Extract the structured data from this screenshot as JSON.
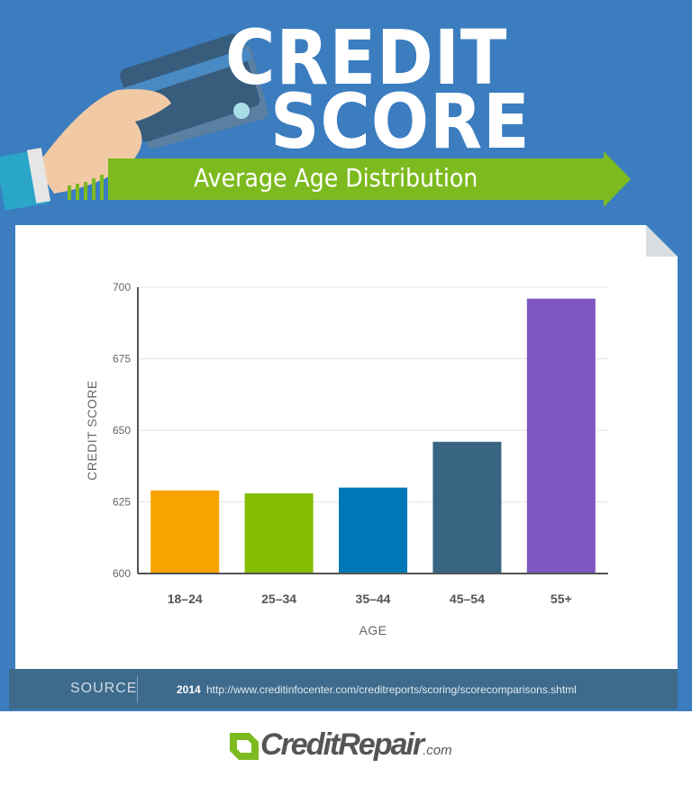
{
  "header": {
    "title_line1": "CREDIT",
    "title_line2": "SCORE",
    "subtitle": "Average Age Distribution"
  },
  "colors": {
    "background": "#3b7dbf",
    "arrow": "#7dba1f",
    "source_bar": "#3e6b8c"
  },
  "chart_data": {
    "type": "bar",
    "categories": [
      "18–24",
      "25–34",
      "35–44",
      "45–54",
      "55+"
    ],
    "values": [
      629,
      628,
      630,
      646,
      696
    ],
    "colors": [
      "#f9a300",
      "#84bd00",
      "#0077b6",
      "#376481",
      "#7e57c2"
    ],
    "xlabel": "AGE",
    "ylabel": "CREDIT SCORE",
    "ylim": [
      600,
      700
    ],
    "yticks": [
      "600",
      "625",
      "650",
      "675",
      "700"
    ],
    "grid": true
  },
  "source": {
    "label": "SOURCE",
    "year": "2014",
    "url": "http://www.creditinfocenter.com/creditreports/scoring/scorecomparisons.shtml"
  },
  "footer": {
    "logo_text": "CreditRepair",
    "logo_suffix": ".com"
  }
}
